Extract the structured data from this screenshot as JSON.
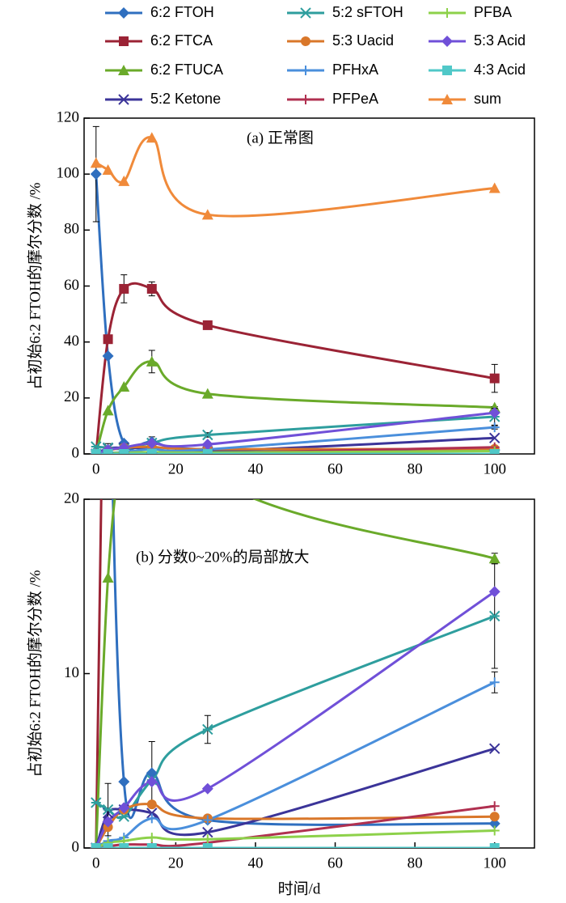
{
  "chart_data": {
    "type": "line",
    "ylabel": "占初始6:2 FTOH的摩尔分数 /%",
    "xlabel": "时间/d",
    "x": [
      0,
      3,
      7,
      14,
      28,
      100
    ],
    "xlim": [
      -3,
      110
    ],
    "xticks": [
      0,
      20,
      40,
      60,
      80,
      100
    ],
    "panels": [
      {
        "annotation": "(a) 正常图",
        "ylim": [
          0,
          120
        ],
        "yticks": [
          0,
          20,
          40,
          60,
          80,
          100,
          120
        ]
      },
      {
        "annotation": "(b) 分数0~20%的局部放大",
        "ylim": [
          0,
          20
        ],
        "yticks": [
          0,
          10,
          20
        ]
      }
    ],
    "series": [
      {
        "name": "6:2 FTOH",
        "color": "#2f6fbf",
        "marker": "diamond",
        "values": [
          100,
          35,
          3.8,
          4.3,
          1.6,
          1.4
        ],
        "errors": [
          17,
          null,
          null,
          1.8,
          null,
          null
        ]
      },
      {
        "name": "6:2 FTCA",
        "color": "#9b2335",
        "marker": "square",
        "values": [
          0,
          41,
          59,
          59,
          46,
          27
        ],
        "errors": [
          null,
          null,
          5,
          2.5,
          null,
          5
        ]
      },
      {
        "name": "6:2 FTUCA",
        "color": "#6aaa2a",
        "marker": "triangle",
        "values": [
          0,
          15.5,
          24,
          33,
          21.5,
          16.6
        ],
        "errors": [
          null,
          null,
          null,
          4,
          null,
          0.3
        ]
      },
      {
        "name": "5:2 Ketone",
        "color": "#3b3499",
        "marker": "x",
        "values": [
          0,
          2.0,
          2.2,
          2.0,
          0.9,
          5.7
        ],
        "errors": [
          null,
          null,
          null,
          null,
          null,
          null
        ]
      },
      {
        "name": "5:2 sFTOH",
        "color": "#2e9e9e",
        "marker": "asterisk",
        "values": [
          2.6,
          2.2,
          1.8,
          3.9,
          6.8,
          13.3
        ],
        "errors": [
          null,
          1.5,
          null,
          null,
          0.8,
          3
        ]
      },
      {
        "name": "5:3 Uacid",
        "color": "#d9772a",
        "marker": "circle",
        "values": [
          0,
          1.2,
          2.2,
          2.5,
          1.7,
          1.8
        ],
        "errors": [
          null,
          null,
          null,
          null,
          null,
          null
        ]
      },
      {
        "name": "PFHxA",
        "color": "#4a8fdc",
        "marker": "plus",
        "values": [
          0,
          0.4,
          0.6,
          1.7,
          1.6,
          9.5
        ],
        "errors": [
          null,
          null,
          null,
          null,
          null,
          0.6
        ]
      },
      {
        "name": "PFPeA",
        "color": "#b03050",
        "marker": "plus",
        "values": [
          0,
          0.1,
          0.2,
          0.2,
          0.3,
          2.4
        ],
        "errors": [
          null,
          null,
          null,
          null,
          null,
          null
        ]
      },
      {
        "name": "PFBA",
        "color": "#8dd14a",
        "marker": "plus",
        "values": [
          0,
          0.3,
          0.4,
          0.6,
          0.5,
          1.0
        ],
        "errors": [
          null,
          null,
          null,
          null,
          null,
          null
        ]
      },
      {
        "name": "5:3 Acid",
        "color": "#7050d8",
        "marker": "diamond",
        "values": [
          0,
          1.5,
          2.3,
          3.8,
          3.4,
          14.7
        ],
        "errors": [
          null,
          null,
          null,
          null,
          null,
          null
        ]
      },
      {
        "name": "4:3 Acid",
        "color": "#50c8c8",
        "marker": "square",
        "values": [
          0,
          0,
          0,
          0,
          0,
          0
        ],
        "errors": [
          null,
          null,
          null,
          null,
          null,
          null
        ]
      },
      {
        "name": "sum",
        "color": "#f08a3a",
        "marker": "triangle",
        "values": [
          104,
          101.5,
          97.5,
          113,
          85.5,
          95
        ],
        "errors": [
          null,
          null,
          null,
          null,
          null,
          null
        ]
      }
    ]
  }
}
